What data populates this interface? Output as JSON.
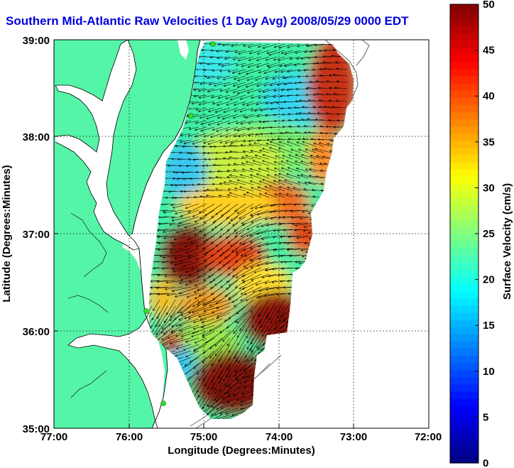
{
  "title": "Southern Mid-Atlantic Raw Velocities (1 Day Avg) 2008/05/29 0000 EDT",
  "map": {
    "xlabel": "Longitude (Degrees:Minutes)",
    "ylabel": "Latitude (Degrees:Minutes)",
    "x_ticks": [
      "77:00",
      "76:00",
      "75:00",
      "74:00",
      "73:00",
      "72:00"
    ],
    "y_ticks": [
      "39:00",
      "38:00",
      "37:00",
      "36:00",
      "35:00"
    ],
    "x_range_deg_west": [
      77,
      72
    ],
    "y_range_deg_north": [
      35,
      39
    ],
    "grid": "dotted",
    "land_color": "#55f5a8",
    "water_color": "#ffffff"
  },
  "colorbar": {
    "label": "Surface Velocity (cm/s)",
    "ticks": [
      "0",
      "5",
      "10",
      "15",
      "20",
      "25",
      "30",
      "35",
      "40",
      "45",
      "50"
    ],
    "range": [
      0,
      50
    ],
    "colormap": "jet"
  },
  "stations": [
    "station-north",
    "station-delaware",
    "station-hatteras-north",
    "station-hatteras-south"
  ]
}
